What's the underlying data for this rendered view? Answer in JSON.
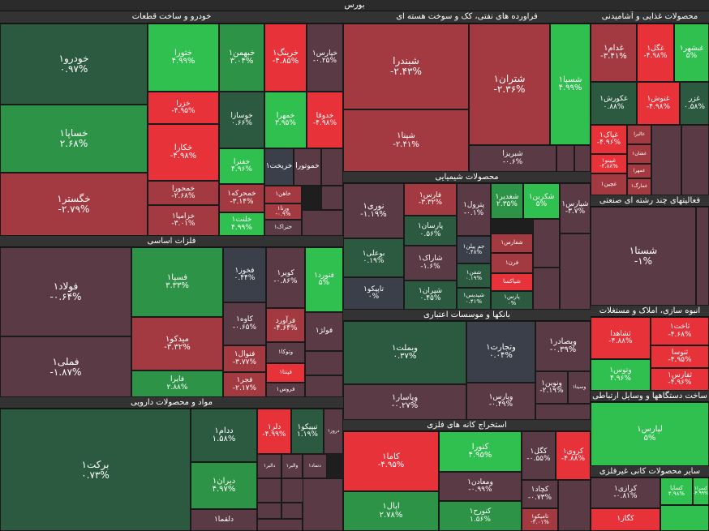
{
  "market_title": "بورس",
  "colors": {
    "strong_up": "#2fc050",
    "mid_up": "#2d9447",
    "weak_up": "#2b5a40",
    "flat": "#3a3f4a",
    "weak_down": "#5a3a44",
    "mid_down": "#a33a42",
    "strong_down": "#e8323a"
  },
  "sectors": [
    {
      "key": "auto",
      "title": "خودرو و ساخت قطعات",
      "tiles": [
        {
          "name": "خودرو۱",
          "change": "۰.۹۷%"
        },
        {
          "name": "خساپا۱",
          "change": "۲.۶۸%"
        },
        {
          "name": "خگستر۱",
          "change": "-۲.۷۹%"
        },
        {
          "name": "ختورا",
          "change": "۴.۹۹%"
        },
        {
          "name": "خزرا",
          "change": "-۴.۹۵%"
        },
        {
          "name": "خکارا",
          "change": "-۴.۹۸%"
        },
        {
          "name": "خمحورا",
          "change": "-۲.۶۸%"
        },
        {
          "name": "خزامیا۱",
          "change": "-۳.۰۱%"
        },
        {
          "name": "خبهمن۱",
          "change": "۳.۰۴%"
        },
        {
          "name": "خوسازا",
          "change": "۰.۶۶%"
        },
        {
          "name": "خفنرا",
          "change": "۴.۹۶%"
        },
        {
          "name": "خمحرکه۱",
          "change": "-۳.۱۴%"
        },
        {
          "name": "خلنت۱",
          "change": "۴.۹۹%"
        },
        {
          "name": "خرینگ۱",
          "change": "-۴.۸۵%"
        },
        {
          "name": "خپارس۱",
          "change": "-۰.۲۵%"
        },
        {
          "name": "خمهرا",
          "change": "۳.۹۵%"
        },
        {
          "name": "خدوقا",
          "change": "-۴.۹۸%"
        },
        {
          "name": "خریخت۱",
          "change": ""
        },
        {
          "name": "خاهن۱",
          "change": ""
        },
        {
          "name": "خموتورا",
          "change": ""
        },
        {
          "name": "ورنا۱",
          "change": "-۰.۹%"
        },
        {
          "name": "ختراک۱",
          "change": ""
        }
      ]
    },
    {
      "key": "oil",
      "title": "فراورده های نفتی، کک و سوخت هسته ای",
      "tiles": [
        {
          "name": "شبندرا",
          "change": "-۲.۴۳%"
        },
        {
          "name": "شپنا۱",
          "change": "-۲.۴۱%"
        },
        {
          "name": "شتران۱",
          "change": "-۲.۳۶%"
        },
        {
          "name": "شسپا۱",
          "change": "۴.۹۹%"
        },
        {
          "name": "شبریزا",
          "change": "-۰.۶%"
        }
      ]
    },
    {
      "key": "food",
      "title": "محصولات غذایی و آشامیدنی",
      "tiles": [
        {
          "name": "غدام۱",
          "change": "-۳.۴۱%"
        },
        {
          "name": "غگل۱",
          "change": "-۴.۹۸%"
        },
        {
          "name": "غبشهر۱",
          "change": "۵%"
        },
        {
          "name": "غکورش۱",
          "change": "۰.۸۸%"
        },
        {
          "name": "غنوش۱",
          "change": "-۴.۹۸%"
        },
        {
          "name": "غزر",
          "change": "۰.۵۸%"
        },
        {
          "name": "غپاک۱",
          "change": "-۴.۹۶%"
        },
        {
          "name": "غالبرا",
          "change": ""
        },
        {
          "name": "غپینو۱",
          "change": "-۴.۸۸%"
        },
        {
          "name": "غشان۱",
          "change": ""
        },
        {
          "name": "غمهرا",
          "change": ""
        },
        {
          "name": "غچین۱",
          "change": ""
        },
        {
          "name": "غمارگ۱",
          "change": ""
        }
      ]
    },
    {
      "key": "multi",
      "title": "فعالیتهای چند رشته ای صنعتی",
      "tiles": [
        {
          "name": "شستا۱",
          "change": "-۱%"
        }
      ]
    },
    {
      "key": "chem",
      "title": "محصولات شیمیایی",
      "tiles": [
        {
          "name": "نوری۱",
          "change": "-۱.۱۹%"
        },
        {
          "name": "بوعلی۱",
          "change": "۰.۱۹%"
        },
        {
          "name": "تاپیکو۱",
          "change": "۰%"
        },
        {
          "name": "فارس۱",
          "change": "-۳.۳۲%"
        },
        {
          "name": "پارسان۱",
          "change": "۰.۵۶%"
        },
        {
          "name": "شاراک۱",
          "change": "-۱.۶%"
        },
        {
          "name": "شپران۱",
          "change": "۰.۴۵%"
        },
        {
          "name": "پترول۱",
          "change": "-۰.۱%"
        },
        {
          "name": "جم پیلن۱",
          "change": "۰.۴۸%"
        },
        {
          "name": "شفن۱",
          "change": "۰.۱۹%"
        },
        {
          "name": "شپدیس۱",
          "change": "۰.۴۱%"
        },
        {
          "name": "شغدیر۱",
          "change": "۲.۳۵%"
        },
        {
          "name": "شکربن۱",
          "change": "۵%"
        },
        {
          "name": "شپارس۱",
          "change": "-۳.۷%"
        },
        {
          "name": "شفارس۱",
          "change": ""
        },
        {
          "name": "فرن۱",
          "change": ""
        },
        {
          "name": "شیاکسا",
          "change": ""
        },
        {
          "name": "پارس۱",
          "change": "۰%"
        }
      ]
    },
    {
      "key": "realestate",
      "title": "انبوه سازی، املاک و مستغلات",
      "tiles": [
        {
          "name": "ثشاهدا",
          "change": "-۴.۸۸%"
        },
        {
          "name": "ثاخت۱",
          "change": "-۴.۶۸%"
        },
        {
          "name": "ثنوسا",
          "change": "-۴.۹۵%"
        },
        {
          "name": "وتوس۱",
          "change": "۴.۹۶%"
        },
        {
          "name": "ثفارس۱",
          "change": "-۴.۹۶%"
        }
      ]
    },
    {
      "key": "metals",
      "title": "فلزات اساسی",
      "tiles": [
        {
          "name": "فولاد۱",
          "change": "-۰.۶۴%"
        },
        {
          "name": "فملی۱",
          "change": "-۱.۸۷%"
        },
        {
          "name": "فسپا۱",
          "change": "۳.۳۳%"
        },
        {
          "name": "میدکو۱",
          "change": "-۳.۳۲%"
        },
        {
          "name": "فایرا",
          "change": "۲.۸۸%"
        },
        {
          "name": "فخوز۱",
          "change": "۰.۴۴%"
        },
        {
          "name": "کاوه۱",
          "change": "-۰.۶۵%"
        },
        {
          "name": "فنوال۱",
          "change": "-۳.۷۷%"
        },
        {
          "name": "فجر۱",
          "change": "-۲.۱۷%"
        },
        {
          "name": "کویر۱",
          "change": "-۰.۸۶%"
        },
        {
          "name": "فرآورد",
          "change": "-۴.۶۴%"
        },
        {
          "name": "وتوکا۱",
          "change": ""
        },
        {
          "name": "فپنتا۱",
          "change": ""
        },
        {
          "name": "فروس۱",
          "change": ""
        },
        {
          "name": "فنورد۱",
          "change": "۵%"
        },
        {
          "name": "فولژ۱",
          "change": ""
        }
      ]
    },
    {
      "key": "banks",
      "title": "بانکها و موسسات اعتباری",
      "tiles": [
        {
          "name": "وبملت۱",
          "change": "۰.۳۷%"
        },
        {
          "name": "وپاسار۱",
          "change": "-۰.۲۷%"
        },
        {
          "name": "وتجارت۱",
          "change": "۰.۰۴%"
        },
        {
          "name": "وپارس۱",
          "change": "-۰.۴۹%"
        },
        {
          "name": "وبصادر۱",
          "change": "-۰.۳۹%"
        },
        {
          "name": "ونوین۱",
          "change": "-۲.۱۹%"
        },
        {
          "name": "وسینا۱",
          "change": ""
        }
      ]
    },
    {
      "key": "telecom",
      "title": "ساخت دستگاهها و وسایل ارتباطی",
      "tiles": [
        {
          "name": "لپارس۱",
          "change": "۵%"
        }
      ]
    },
    {
      "key": "pharma",
      "title": "مواد و محصولات دارویی",
      "tiles": [
        {
          "name": "برکت۱",
          "change": "۰.۷۳%"
        },
        {
          "name": "ددام۱",
          "change": "۱.۵۸%"
        },
        {
          "name": "دیران۱",
          "change": "۴.۹۷%"
        },
        {
          "name": "دلقما۱",
          "change": ""
        },
        {
          "name": "دلر۱",
          "change": "-۴.۹۹%"
        },
        {
          "name": "تیپیکو۱",
          "change": "۱.۱۹%"
        },
        {
          "name": "دروز۱",
          "change": ""
        },
        {
          "name": "دالبر۱",
          "change": ""
        },
        {
          "name": "والبر۱",
          "change": ""
        },
        {
          "name": "دتماد۱",
          "change": ""
        }
      ]
    },
    {
      "key": "mining",
      "title": "استخراج کانه های فلزی",
      "tiles": [
        {
          "name": "کاما۱",
          "change": "-۴.۹۵%"
        },
        {
          "name": "کنورا",
          "change": "۴.۹۵%"
        },
        {
          "name": "ومعادن۱",
          "change": "-۰.۹۹%"
        },
        {
          "name": "کنورح۱",
          "change": "۱.۵۶%"
        },
        {
          "name": "اپال۱",
          "change": "۲.۷۸%"
        },
        {
          "name": "کگل۱",
          "change": "-۰.۵۵%"
        },
        {
          "name": "کروی۱",
          "change": "-۴.۸۸%"
        },
        {
          "name": "کچاد۱",
          "change": "-۰.۷۳%"
        },
        {
          "name": "تامیکو۱",
          "change": "-۳.۰۱%"
        }
      ]
    },
    {
      "key": "nonmetal",
      "title": "سایر محصولات کانی غیرفلزی",
      "tiles": [
        {
          "name": "کرازی۱",
          "change": "-۰.۸۱%"
        },
        {
          "name": "کساپا",
          "change": "۴.۹۸%"
        },
        {
          "name": "کسرا۱",
          "change": "-۴.۹۹%"
        },
        {
          "name": "کگاز۱",
          "change": ""
        }
      ]
    }
  ]
}
